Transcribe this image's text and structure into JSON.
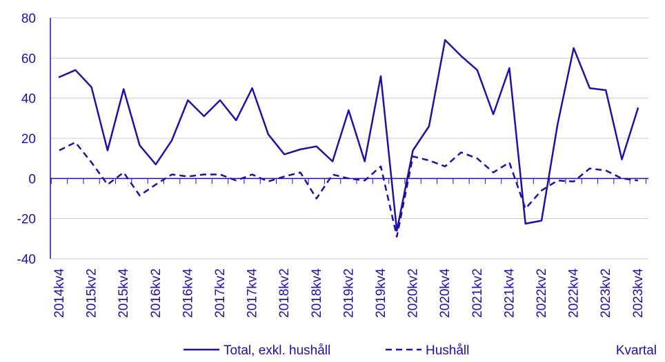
{
  "chart_data": {
    "type": "line",
    "title": "",
    "xlabel": "Kvartal",
    "ylabel": "",
    "ylim": [
      -40,
      80
    ],
    "yticks": [
      -40,
      -20,
      0,
      20,
      40,
      60,
      80
    ],
    "x": [
      "2014kv4",
      "2015kv1",
      "2015kv2",
      "2015kv3",
      "2015kv4",
      "2016kv1",
      "2016kv2",
      "2016kv3",
      "2016kv4",
      "2017kv1",
      "2017kv2",
      "2017kv3",
      "2017kv4",
      "2018kv1",
      "2018kv2",
      "2018kv3",
      "2018kv4",
      "2019kv1",
      "2019kv2",
      "2019kv3",
      "2019kv4",
      "2020kv1",
      "2020kv2",
      "2020kv3",
      "2020kv4",
      "2021kv1",
      "2021kv2",
      "2021kv3",
      "2021kv4",
      "2022kv1",
      "2022kv2",
      "2022kv3",
      "2022kv4",
      "2023kv1",
      "2023kv2",
      "2023kv3",
      "2023kv4"
    ],
    "xtick_labels": [
      "2014kv4",
      "2015kv2",
      "2015kv4",
      "2016kv2",
      "2016kv4",
      "2017kv2",
      "2017kv4",
      "2018kv2",
      "2018kv4",
      "2019kv2",
      "2019kv4",
      "2020kv2",
      "2020kv4",
      "2021kv2",
      "2021kv4",
      "2022kv2",
      "2022kv4",
      "2023kv2",
      "2023kv4"
    ],
    "series": [
      {
        "name": "Total, exkl. hushåll",
        "style": "solid",
        "values": [
          50.5,
          54,
          45.5,
          14,
          44.5,
          16.5,
          7,
          19,
          39,
          31,
          39,
          29,
          45,
          22,
          12,
          14.5,
          16,
          8.5,
          34,
          8.5,
          51,
          -26,
          14,
          26,
          69,
          61,
          54,
          32,
          55,
          -22.5,
          -21,
          27,
          65,
          45,
          44,
          9.5,
          35
        ]
      },
      {
        "name": "Hushåll",
        "style": "dashed",
        "values": [
          14,
          18,
          8,
          -3,
          3,
          -8.5,
          -3,
          2,
          1,
          2,
          2,
          -1,
          2,
          -1.5,
          1,
          3,
          -10,
          2,
          0,
          -1,
          6,
          -29,
          11,
          9,
          6,
          13,
          10,
          3,
          8,
          -15,
          -6,
          -1,
          -1.5,
          5,
          4,
          0,
          -1
        ]
      }
    ],
    "colors": {
      "line": "#1e0fa8",
      "grid": "#c9c9c9",
      "axis": "#1e0fa8"
    },
    "grid": true,
    "legend_position": "bottom"
  }
}
